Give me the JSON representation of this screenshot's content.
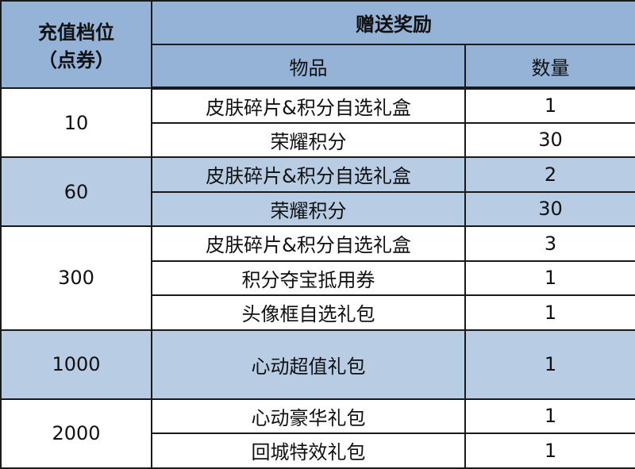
{
  "header": {
    "tier_line1": "充值档位",
    "tier_line2": "（点券）",
    "reward": "赠送奖励",
    "item": "物品",
    "qty": "数量"
  },
  "colors": {
    "header": "#95b3d7",
    "shaded": "#b8cce4",
    "border": "#1a1a1a"
  },
  "groups": [
    {
      "tier": "10",
      "shaded": false,
      "rows": [
        {
          "item": "皮肤碎片&积分自选礼盒",
          "qty": "1"
        },
        {
          "item": "荣耀积分",
          "qty": "30"
        }
      ]
    },
    {
      "tier": "60",
      "shaded": true,
      "rows": [
        {
          "item": "皮肤碎片&积分自选礼盒",
          "qty": "2"
        },
        {
          "item": "荣耀积分",
          "qty": "30"
        }
      ]
    },
    {
      "tier": "300",
      "shaded": false,
      "rows": [
        {
          "item": "皮肤碎片&积分自选礼盒",
          "qty": "3"
        },
        {
          "item": "积分夺宝抵用券",
          "qty": "1"
        },
        {
          "item": "头像框自选礼包",
          "qty": "1"
        }
      ]
    },
    {
      "tier": "1000",
      "shaded": true,
      "rows": [
        {
          "item": "心动超值礼包",
          "qty": "1"
        }
      ]
    },
    {
      "tier": "2000",
      "shaded": false,
      "rows": [
        {
          "item": "心动豪华礼包",
          "qty": "1"
        },
        {
          "item": "回城特效礼包",
          "qty": "1"
        }
      ]
    }
  ]
}
